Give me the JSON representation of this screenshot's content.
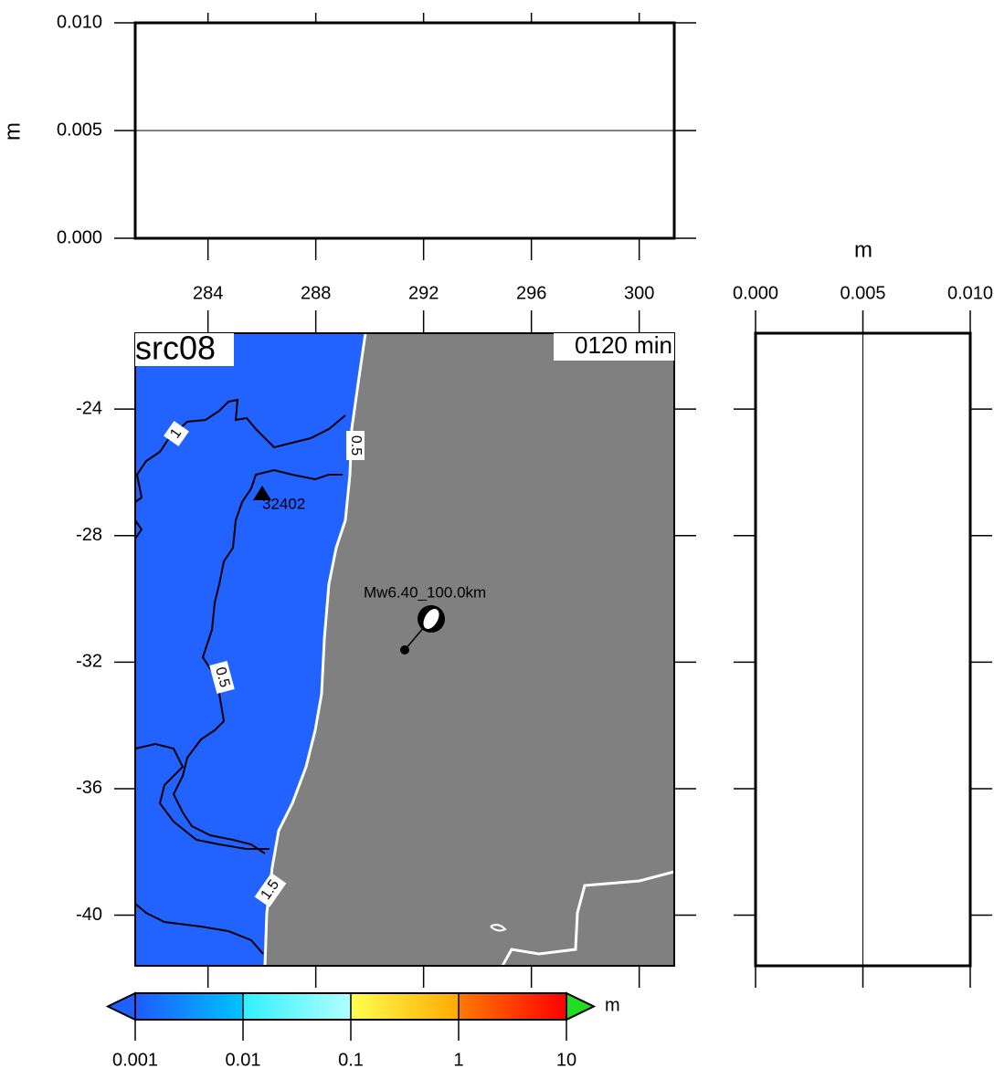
{
  "top_panel": {
    "ylabel": "m",
    "ylim": [
      0,
      0.01
    ],
    "yticks": [
      {
        "value": 0,
        "label": "0.000"
      },
      0.005,
      {
        "value": 0.01,
        "label": "0.010"
      }
    ],
    "trace_level": 0.005
  },
  "map": {
    "title": "src08",
    "time_label": "0120 min",
    "xlim": [
      281.3,
      301.3
    ],
    "ylim": [
      -41.6,
      -21.6
    ],
    "xticks": [
      284,
      288,
      292,
      296,
      300
    ],
    "yticks": [
      -24,
      -28,
      -32,
      -36,
      -40
    ],
    "station": "32402",
    "event": "Mw6.40_100.0km",
    "contour_labels": [
      1,
      0.5,
      0.5,
      1.5
    ],
    "ocean_color": "#2262ff",
    "land_color": "#808080"
  },
  "side_panel": {
    "xlabel": "m",
    "xlim": [
      0,
      0.01
    ],
    "xticks": [
      {
        "value": 0,
        "label": "0.000"
      },
      0.005,
      {
        "value": 0.01,
        "label": "0.010"
      }
    ],
    "trace_level": 0.005
  },
  "colorbar": {
    "label": "m",
    "scale": "log",
    "range": [
      0.001,
      10
    ],
    "ticks": [
      0.001,
      0.01,
      0.1,
      1,
      10
    ],
    "segments": [
      [
        "#1e5aff",
        "#00c4ff"
      ],
      [
        "#30f0ff",
        "#b0ffff"
      ],
      [
        "#ffff50",
        "#ffaa00"
      ],
      [
        "#ff7a00",
        "#ff0000"
      ]
    ],
    "under_color": "#2060ff",
    "over_color": "#22dd22"
  }
}
